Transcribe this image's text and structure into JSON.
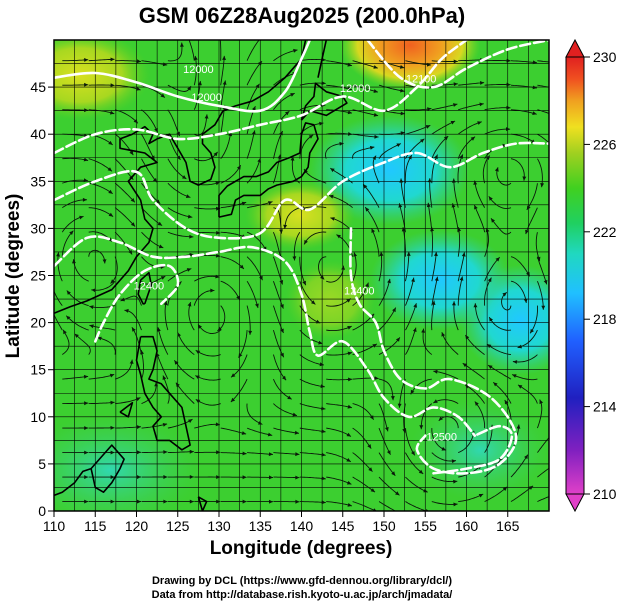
{
  "chart_data": {
    "type": "heatmap",
    "title": "GSM 06Z28Aug2025 (200.0hPa)",
    "xlabel": "Longitude (degrees)",
    "ylabel": "Latitude  (degrees)",
    "xlim": [
      110,
      170
    ],
    "ylim": [
      0,
      50
    ],
    "x_ticks": [
      "110",
      "115",
      "120",
      "125",
      "130",
      "135",
      "140",
      "145",
      "150",
      "155",
      "160",
      "165"
    ],
    "y_ticks": [
      "0",
      "5",
      "10",
      "15",
      "20",
      "25",
      "30",
      "35",
      "40",
      "45"
    ],
    "grid": true,
    "colorbar": {
      "min": 210,
      "max": 230,
      "ticks": [
        "230",
        "226",
        "222",
        "218",
        "214",
        "210"
      ],
      "tick_values": [
        230,
        226,
        222,
        218,
        214,
        210
      ]
    },
    "contour_labels": [
      {
        "text": "12000",
        "lon": 127.5,
        "lat": 46.5
      },
      {
        "text": "12000",
        "lon": 128.5,
        "lat": 43.5
      },
      {
        "text": "12000",
        "lon": 146.5,
        "lat": 44.5
      },
      {
        "text": "12100",
        "lon": 154.5,
        "lat": 45.5
      },
      {
        "text": "12400",
        "lon": 147.0,
        "lat": 23.0
      },
      {
        "text": "12500",
        "lon": 157.0,
        "lat": 7.5
      },
      {
        "text": "12400",
        "lon": 121.5,
        "lat": 23.5
      }
    ],
    "contour_lines": [
      {
        "level": "12000",
        "points": [
          [
            110,
            46
          ],
          [
            115,
            46.5
          ],
          [
            120,
            45.5
          ],
          [
            125,
            44
          ],
          [
            130,
            43
          ],
          [
            135,
            42.5
          ],
          [
            138,
            44.5
          ],
          [
            140,
            48
          ],
          [
            141,
            50
          ]
        ]
      },
      {
        "level": "12100",
        "points": [
          [
            110,
            38
          ],
          [
            115,
            40
          ],
          [
            120,
            40.5
          ],
          [
            125,
            39.5
          ],
          [
            130,
            40
          ],
          [
            135,
            41
          ],
          [
            140,
            42
          ],
          [
            145,
            44
          ],
          [
            150,
            42.5
          ],
          [
            154,
            45
          ],
          [
            157,
            48
          ],
          [
            160,
            50
          ]
        ]
      },
      {
        "level": "12100",
        "points": [
          [
            148,
            50
          ],
          [
            152,
            46
          ],
          [
            156,
            45
          ],
          [
            160,
            47
          ],
          [
            165,
            49
          ],
          [
            170,
            50
          ]
        ]
      },
      {
        "level": "12200",
        "points": [
          [
            110,
            33
          ],
          [
            115,
            35
          ],
          [
            120,
            36
          ],
          [
            122,
            33
          ],
          [
            126,
            30
          ],
          [
            130,
            29
          ],
          [
            135,
            29.5
          ],
          [
            138,
            33
          ],
          [
            141,
            32
          ],
          [
            145,
            35
          ],
          [
            150,
            37
          ],
          [
            154,
            38
          ],
          [
            158,
            36.5
          ],
          [
            162,
            38
          ],
          [
            166,
            39
          ],
          [
            170,
            39
          ]
        ]
      },
      {
        "level": "12300",
        "points": [
          [
            110,
            26
          ],
          [
            114,
            29
          ],
          [
            118,
            28.5
          ],
          [
            122,
            27
          ],
          [
            126,
            27
          ],
          [
            130,
            27.5
          ],
          [
            134,
            28
          ],
          [
            138,
            26.5
          ],
          [
            140,
            23
          ],
          [
            141,
            19
          ],
          [
            142,
            16.5
          ],
          [
            145,
            18
          ],
          [
            148,
            15
          ],
          [
            150,
            12
          ],
          [
            153,
            10
          ],
          [
            156,
            11
          ],
          [
            159,
            10
          ],
          [
            161,
            8
          ]
        ]
      },
      {
        "level": "12400",
        "points": [
          [
            115,
            18
          ],
          [
            116,
            20
          ],
          [
            118,
            23
          ],
          [
            121,
            25.5
          ],
          [
            124,
            26
          ],
          [
            125,
            24
          ],
          [
            123,
            22
          ]
        ]
      },
      {
        "level": "12400",
        "points": [
          [
            146,
            30
          ],
          [
            146,
            25
          ],
          [
            147,
            22
          ],
          [
            149,
            20
          ],
          [
            150,
            17
          ],
          [
            152,
            14
          ],
          [
            155,
            13
          ],
          [
            158,
            14
          ],
          [
            163,
            12
          ],
          [
            166,
            8
          ],
          [
            164,
            5
          ],
          [
            160,
            4
          ],
          [
            156,
            4.5
          ],
          [
            154,
            6.5
          ],
          [
            155,
            8
          ]
        ]
      },
      {
        "level": "12500",
        "points": [
          [
            156,
            4
          ],
          [
            160,
            4.5
          ],
          [
            164,
            5.5
          ],
          [
            165.5,
            8
          ],
          [
            164,
            9
          ],
          [
            161,
            8
          ]
        ]
      }
    ]
  }
}
